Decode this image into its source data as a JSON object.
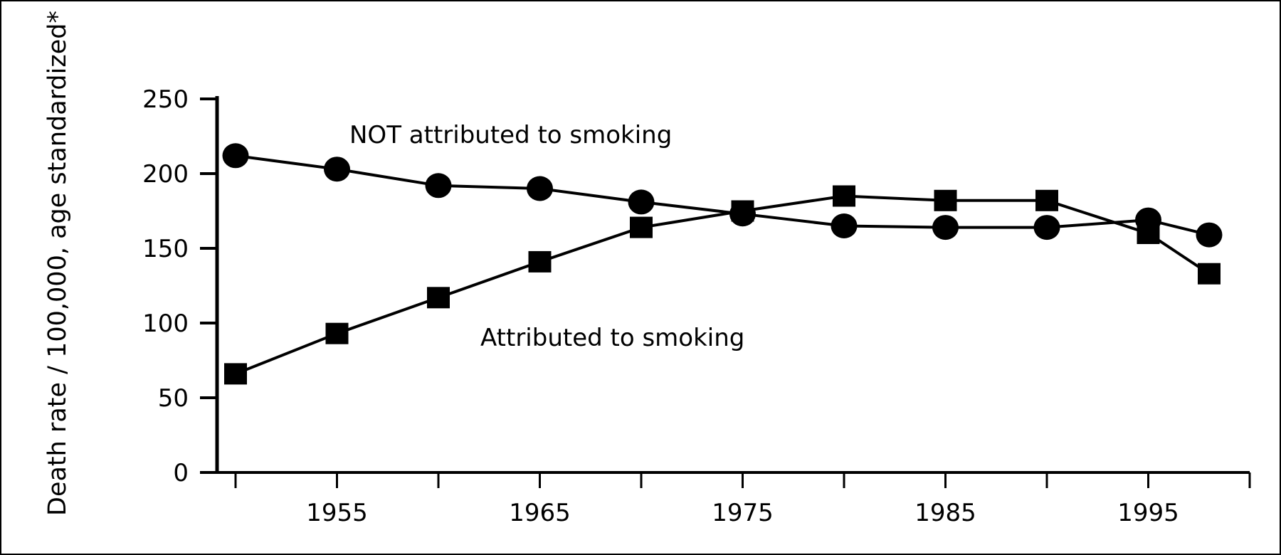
{
  "chart_data": {
    "type": "line",
    "title": "",
    "xlabel": "",
    "ylabel": "Death rate / 100,000, age standardized*",
    "ylim": [
      0,
      250
    ],
    "xlim": [
      1950,
      2000
    ],
    "yticks": [
      "0",
      "50",
      "100",
      "150",
      "200",
      "250"
    ],
    "xticks": [
      "1955",
      "1965",
      "1975",
      "1985",
      "1995"
    ],
    "grid": false,
    "legend": "none",
    "series": [
      {
        "name": "NOT attributed to smoking",
        "marker": "circle",
        "color": "#000000",
        "x": [
          1950,
          1955,
          1960,
          1965,
          1970,
          1975,
          1980,
          1985,
          1990,
          1995,
          1998
        ],
        "y": [
          212,
          203,
          192,
          190,
          181,
          173,
          165,
          164,
          164,
          169,
          159
        ]
      },
      {
        "name": "Attributed to smoking",
        "marker": "square",
        "color": "#000000",
        "x": [
          1950,
          1955,
          1960,
          1965,
          1970,
          1975,
          1980,
          1985,
          1990,
          1995,
          1998
        ],
        "y": [
          66,
          93,
          117,
          141,
          164,
          175,
          185,
          182,
          182,
          160,
          133
        ]
      }
    ]
  }
}
